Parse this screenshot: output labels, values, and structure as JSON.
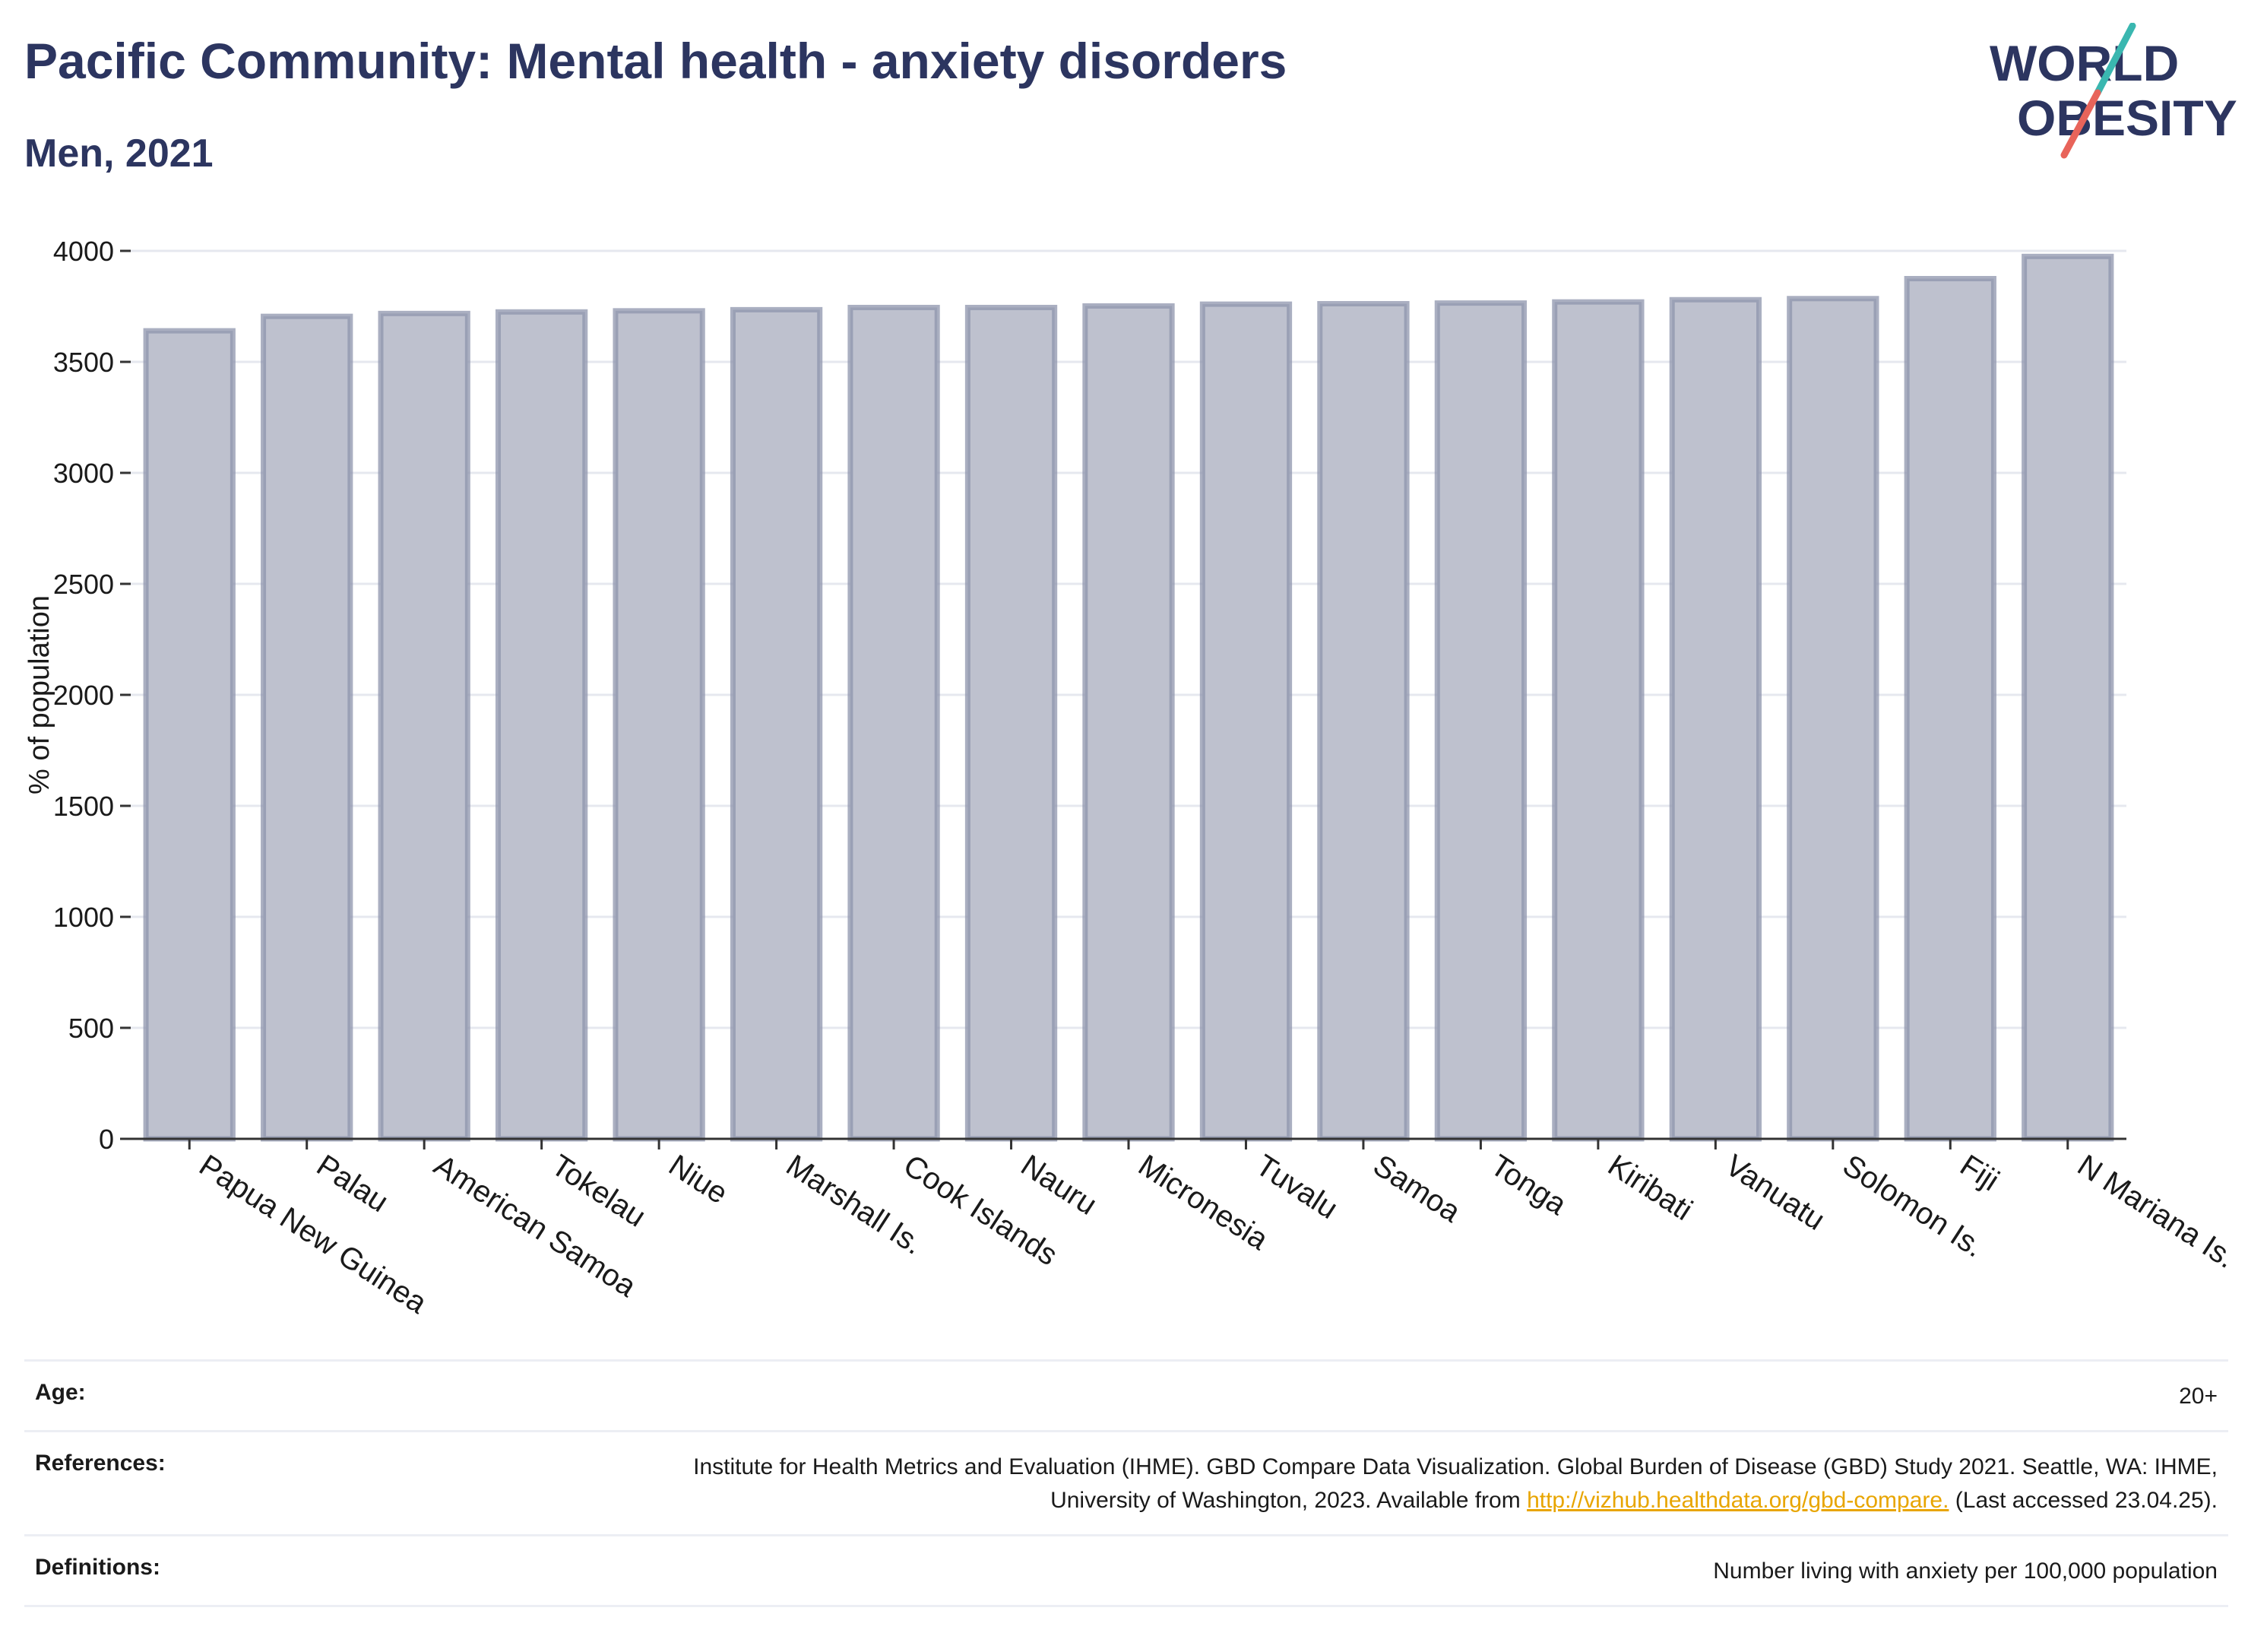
{
  "header": {
    "title": "Pacific Community: Mental health - anxiety disorders",
    "subtitle": "Men, 2021"
  },
  "logo": {
    "line1": "WORLD",
    "line2": "OBESITY",
    "accent_teal": "#3ab7b0",
    "accent_red": "#e8645a",
    "text_color": "#2c3560"
  },
  "colors": {
    "bar_fill": "#bec1ce",
    "bar_stroke": "#8e94ac",
    "axis": "#333333",
    "grid": "#e6e8ef",
    "title": "#2c3560"
  },
  "chart_data": {
    "type": "bar",
    "ylabel": "% of population",
    "ylim": [
      0,
      4000
    ],
    "yticks": [
      0,
      500,
      1000,
      1500,
      2000,
      2500,
      3000,
      3500,
      4000
    ],
    "grid": true,
    "categories": [
      "Papua New Guinea",
      "Palau",
      "American Samoa",
      "Tokelau",
      "Niue",
      "Marshall Is.",
      "Cook Islands",
      "Nauru",
      "Micronesia",
      "Tuvalu",
      "Samoa",
      "Tonga",
      "Kiribati",
      "Vanuatu",
      "Solomon Is.",
      "Fiji",
      "N Mariana Is."
    ],
    "values": [
      3640,
      3705,
      3718,
      3725,
      3730,
      3735,
      3745,
      3745,
      3752,
      3760,
      3762,
      3765,
      3770,
      3780,
      3785,
      3875,
      3975
    ]
  },
  "info": {
    "age_label": "Age:",
    "age_value": "20+",
    "references_label": "References:",
    "references_text_1": "Institute for Health Metrics and Evaluation (IHME). GBD Compare Data Visualization. Global Burden of Disease (GBD) Study 2021.",
    "references_text_2": "Seattle, WA: IHME, University of Washington, 2023. Available from",
    "references_link": "http://vizhub.healthdata.org/gbd-compare.",
    "references_text_3": "(Last accessed",
    "references_text_4": "23.04.25).",
    "definitions_label": "Definitions:",
    "definitions_value": "Number living with anxiety per 100,000 population"
  }
}
